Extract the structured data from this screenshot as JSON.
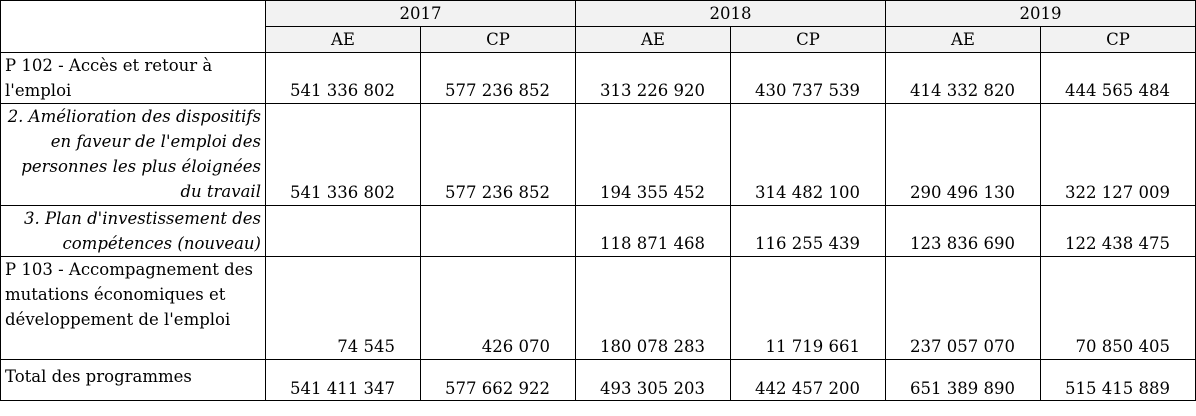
{
  "years": [
    "2017",
    "2018",
    "2019"
  ],
  "subheaders": [
    "AE",
    "CP",
    "AE",
    "CP",
    "AE",
    "CP"
  ],
  "rows": [
    {
      "label": "P 102 - Accès et retour à l'emploi",
      "italic": false,
      "values": [
        "541 336 802",
        "577 236 852",
        "313 226 920",
        "430 737 539",
        "414 332 820",
        "444 565 484"
      ]
    },
    {
      "label": "2. Amélioration des dispositifs en faveur de l'emploi des personnes les plus éloignées du travail",
      "italic": true,
      "values": [
        "541 336 802",
        "577 236 852",
        "194 355 452",
        "314 482 100",
        "290 496 130",
        "322 127 009"
      ]
    },
    {
      "label": "3. Plan d'investissement des compétences (nouveau)",
      "italic": true,
      "values": [
        "",
        "",
        "118 871 468",
        "116 255 439",
        "123 836 690",
        "122 438 475"
      ]
    },
    {
      "label": "P 103 - Accompagnement des mutations économiques et développement de l'emploi",
      "italic": false,
      "values": [
        "74 545",
        "426 070",
        "180 078 283",
        "11 719 661",
        "237 057 070",
        "70 850 405"
      ]
    },
    {
      "label": "Total des programmes",
      "italic": false,
      "values": [
        "541 411 347",
        "577 662 922",
        "493 305 203",
        "442 457 200",
        "651 389 890",
        "515 415 889"
      ]
    }
  ]
}
